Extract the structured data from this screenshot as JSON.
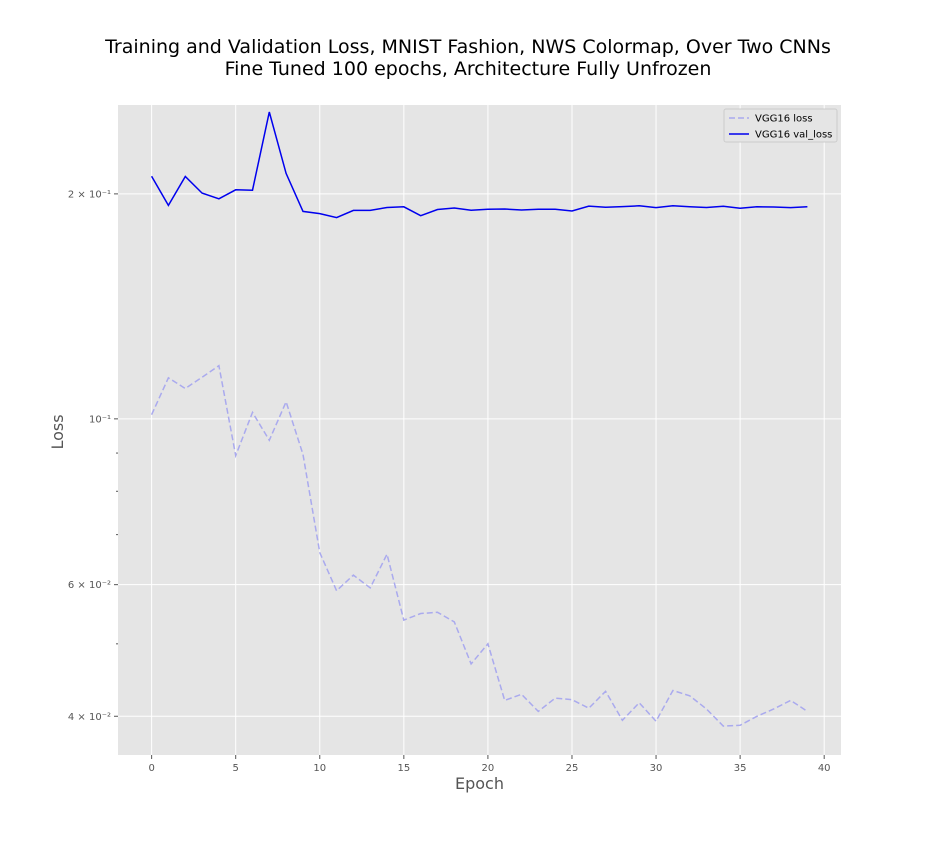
{
  "chart_data": {
    "type": "line",
    "title_line1": "Training and Validation Loss, MNIST Fashion, NWS Colormap, Over Two CNNs",
    "title_line2": "Fine Tuned 100 epochs, Architecture Fully Unfrozen",
    "xlabel": "Epoch",
    "ylabel": "Loss",
    "xlim": [
      -2,
      41
    ],
    "ylim": [
      0.0355,
      0.263
    ],
    "yscale": "log",
    "grid": true,
    "legend_position": "top-right",
    "x_ticks": [
      0,
      5,
      10,
      15,
      20,
      25,
      30,
      35,
      40
    ],
    "x_tick_labels": [
      "0",
      "5",
      "10",
      "15",
      "20",
      "25",
      "30",
      "35",
      "40"
    ],
    "y_ticks": [
      {
        "value": 0.2,
        "label": "2 × 10⁻¹"
      },
      {
        "value": 0.1,
        "label": "10⁻¹"
      },
      {
        "value": 0.06,
        "label": "6 × 10⁻²"
      },
      {
        "value": 0.04,
        "label": "4 × 10⁻²"
      }
    ],
    "y_minor_ticks": [
      0.09,
      0.08,
      0.07,
      0.05
    ],
    "x": [
      0,
      1,
      2,
      3,
      4,
      5,
      6,
      7,
      8,
      9,
      10,
      11,
      12,
      13,
      14,
      15,
      16,
      17,
      18,
      19,
      20,
      21,
      22,
      23,
      24,
      25,
      26,
      27,
      28,
      29,
      30,
      31,
      32,
      33,
      34,
      35,
      36,
      37,
      38,
      39
    ],
    "series": [
      {
        "name": "VGG16 loss",
        "color": "#aaaaee",
        "dash": true,
        "values": [
          0.1013,
          0.1135,
          0.1098,
          0.1137,
          0.1178,
          0.0893,
          0.102,
          0.0936,
          0.1054,
          0.0896,
          0.0662,
          0.0589,
          0.0618,
          0.0594,
          0.0659,
          0.0538,
          0.0549,
          0.0551,
          0.0535,
          0.047,
          0.05,
          0.042,
          0.0428,
          0.0406,
          0.0423,
          0.0421,
          0.041,
          0.0432,
          0.0395,
          0.0417,
          0.0394,
          0.0433,
          0.0426,
          0.0409,
          0.0388,
          0.0389,
          0.04,
          0.0409,
          0.042,
          0.0406
        ]
      },
      {
        "name": "VGG16 val_loss",
        "color": "#0000ee",
        "dash": false,
        "values": [
          0.2112,
          0.193,
          0.211,
          0.2005,
          0.197,
          0.2025,
          0.2023,
          0.2574,
          0.213,
          0.1895,
          0.1882,
          0.1859,
          0.1901,
          0.1901,
          0.1918,
          0.1922,
          0.187,
          0.1906,
          0.1915,
          0.1902,
          0.1907,
          0.1909,
          0.1903,
          0.1907,
          0.1907,
          0.1897,
          0.1926,
          0.1919,
          0.1923,
          0.1928,
          0.1917,
          0.1928,
          0.1922,
          0.1918,
          0.1925,
          0.1913,
          0.1922,
          0.1921,
          0.1917,
          0.1922
        ]
      }
    ]
  }
}
